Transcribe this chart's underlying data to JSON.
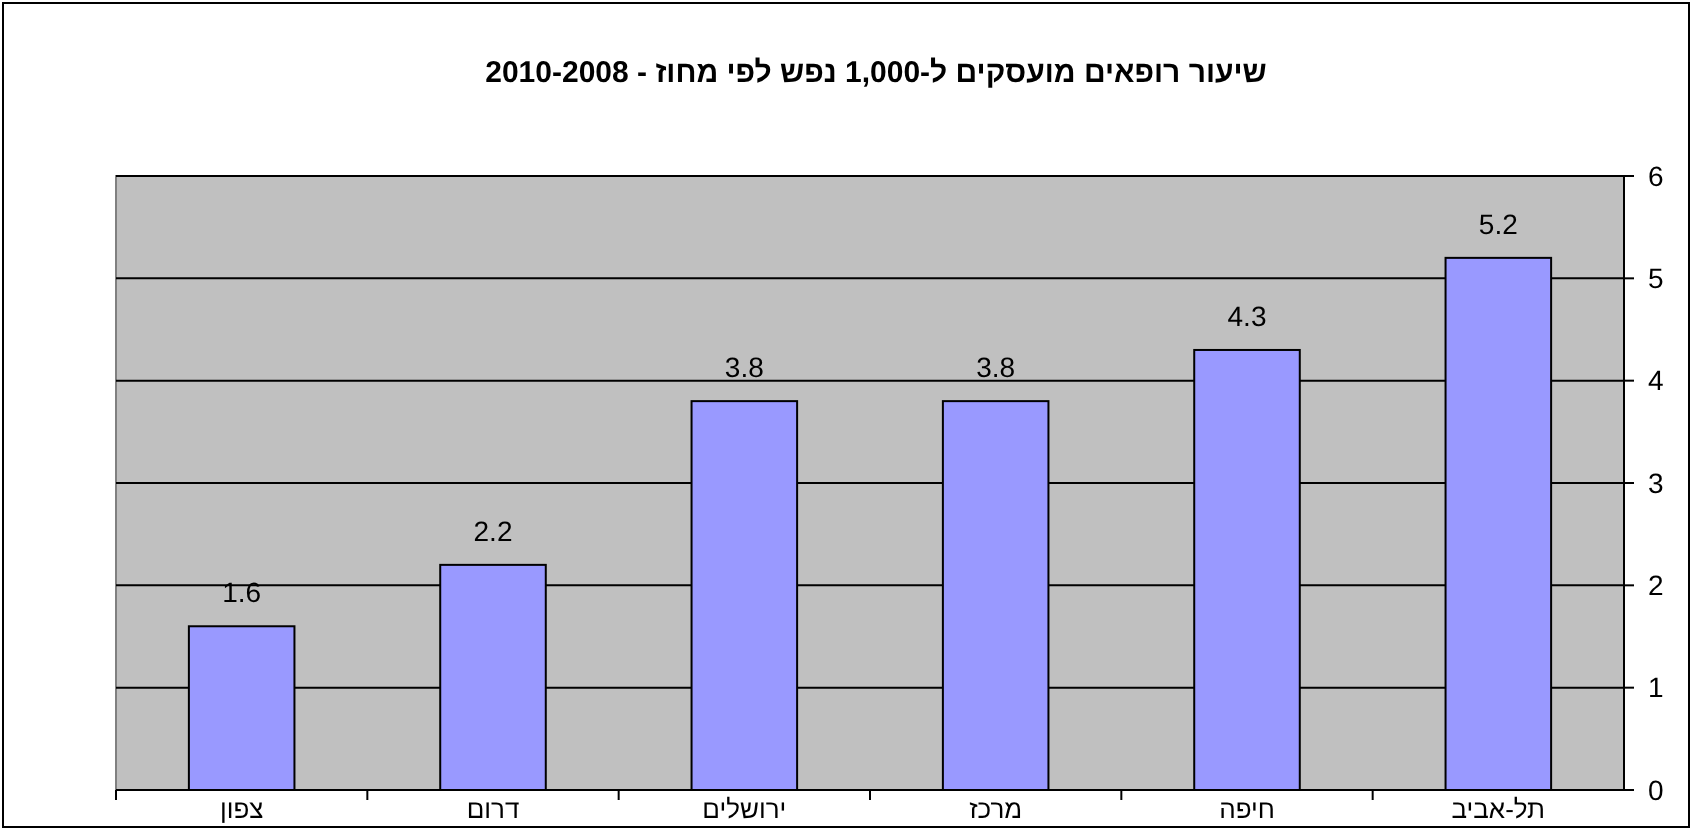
{
  "chart_data": {
    "type": "bar",
    "title": "שיעור רופאים מועסקים ל-1,000 נפש לפי מחוז - 2010-2008",
    "categories": [
      "צפון",
      "דרום",
      "ירושלים",
      "מרכז",
      "חיפה",
      "תל-אביב"
    ],
    "values": [
      1.6,
      2.2,
      3.8,
      3.8,
      4.3,
      5.2
    ],
    "color": "#9999ff",
    "ylim": [
      0,
      6
    ],
    "yticks": [
      0,
      1,
      2,
      3,
      4,
      5,
      6
    ],
    "grid": "y",
    "data_labels": true
  }
}
